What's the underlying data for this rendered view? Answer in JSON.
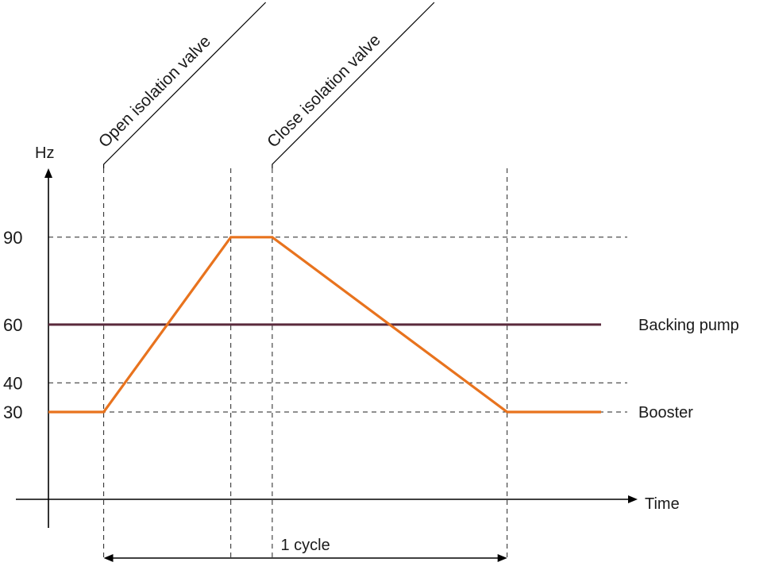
{
  "chart_data": {
    "type": "line",
    "y_axis_label": "Hz",
    "x_axis_label": "Time",
    "y_ticks": [
      90,
      60,
      40,
      30
    ],
    "series": [
      {
        "name": "Backing pump",
        "color": "#5a2a3c",
        "points": [
          [
            0,
            60
          ],
          [
            100,
            60
          ]
        ]
      },
      {
        "name": "Booster",
        "color": "#e8731e",
        "points": [
          [
            0,
            30
          ],
          [
            10,
            30
          ],
          [
            33,
            90
          ],
          [
            40.5,
            90
          ],
          [
            83,
            30
          ],
          [
            100,
            30
          ]
        ]
      }
    ],
    "events": [
      {
        "label": "Open isolation valve",
        "t": 10
      },
      {
        "label": "Close isolation valve",
        "t": 40.5
      }
    ],
    "plateau_start": 33,
    "cycle": {
      "label": "1 cycle",
      "start": 10,
      "end": 83
    },
    "grid_lines_y": [
      90,
      40,
      30
    ]
  }
}
